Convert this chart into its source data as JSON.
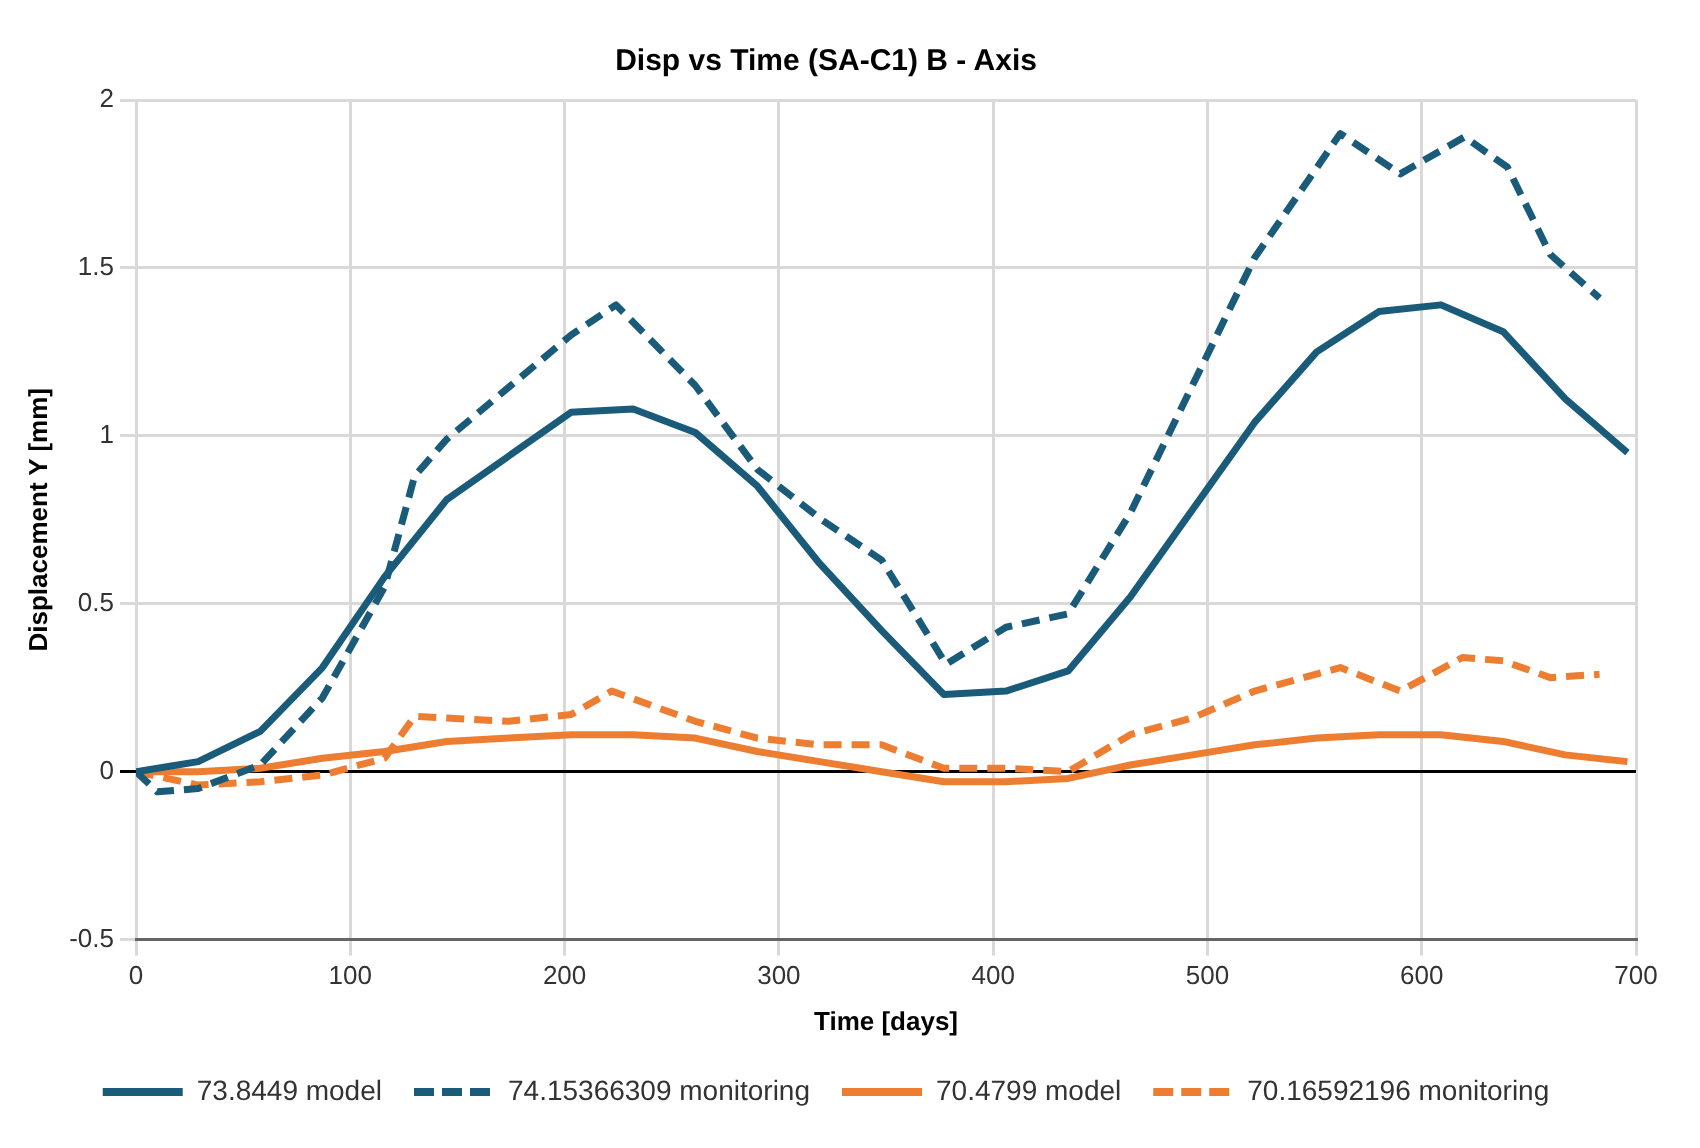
{
  "chart_data": {
    "type": "line",
    "title": "Disp vs Time (SA-C1) B - Axis",
    "xlabel": "Time [days]",
    "ylabel": "Displacement Y [mm]",
    "xlim": [
      0,
      700
    ],
    "xticks": [
      0,
      100,
      200,
      300,
      400,
      500,
      600,
      700
    ],
    "ylim": [
      -0.5,
      2
    ],
    "yticks": [
      -0.5,
      0,
      0.5,
      1,
      1.5,
      2
    ],
    "grid": true,
    "legend": "bottom",
    "marker": "none",
    "series": [
      {
        "name": "73.8449 model",
        "color": "#1b5b7a",
        "line_style": "solid",
        "x": [
          0,
          29,
          58,
          87,
          116,
          145,
          174,
          203,
          232,
          261,
          290,
          319,
          348,
          377,
          406,
          435,
          464,
          493,
          522,
          551,
          580,
          609,
          638,
          667,
          696
        ],
        "values": [
          0,
          0.03,
          0.12,
          0.31,
          0.58,
          0.81,
          0.94,
          1.07,
          1.08,
          1.01,
          0.85,
          0.62,
          0.42,
          0.23,
          0.24,
          0.3,
          0.52,
          0.78,
          1.04,
          1.25,
          1.37,
          1.39,
          1.31,
          1.11,
          0.95
        ]
      },
      {
        "name": "74.15366309 monitoring",
        "color": "#1b5b7a",
        "line_style": "dashed",
        "x": [
          0,
          10,
          29,
          58,
          87,
          116,
          130,
          145,
          203,
          224,
          261,
          290,
          320,
          348,
          378,
          406,
          435,
          464,
          493,
          522,
          562,
          590,
          620,
          640,
          660,
          683
        ],
        "values": [
          0,
          -0.06,
          -0.05,
          0.02,
          0.22,
          0.55,
          0.88,
          0.99,
          1.3,
          1.39,
          1.15,
          0.9,
          0.75,
          0.63,
          0.32,
          0.43,
          0.47,
          0.77,
          1.15,
          1.53,
          1.9,
          1.78,
          1.89,
          1.8,
          1.54,
          1.41
        ]
      },
      {
        "name": "70.4799 model",
        "color": "#ed7d31",
        "line_style": "solid",
        "x": [
          0,
          29,
          58,
          87,
          116,
          145,
          174,
          203,
          232,
          261,
          290,
          319,
          348,
          377,
          406,
          435,
          464,
          493,
          522,
          551,
          580,
          609,
          638,
          667,
          696
        ],
        "values": [
          0,
          0,
          0.01,
          0.04,
          0.06,
          0.09,
          0.1,
          0.11,
          0.11,
          0.1,
          0.06,
          0.03,
          0,
          -0.03,
          -0.03,
          -0.02,
          0.02,
          0.05,
          0.08,
          0.1,
          0.11,
          0.11,
          0.09,
          0.05,
          0.03
        ]
      },
      {
        "name": "70.16592196 monitoring",
        "color": "#ed7d31",
        "line_style": "dashed",
        "x": [
          0,
          29,
          58,
          87,
          116,
          130,
          145,
          174,
          203,
          222,
          261,
          290,
          319,
          348,
          377,
          406,
          435,
          464,
          493,
          522,
          562,
          590,
          619,
          638,
          660,
          683
        ],
        "values": [
          0,
          -0.04,
          -0.03,
          -0.01,
          0.04,
          0.165,
          0.16,
          0.15,
          0.17,
          0.24,
          0.15,
          0.1,
          0.08,
          0.08,
          0.01,
          0.01,
          0,
          0.11,
          0.16,
          0.24,
          0.31,
          0.24,
          0.34,
          0.33,
          0.28,
          0.29
        ]
      }
    ]
  }
}
